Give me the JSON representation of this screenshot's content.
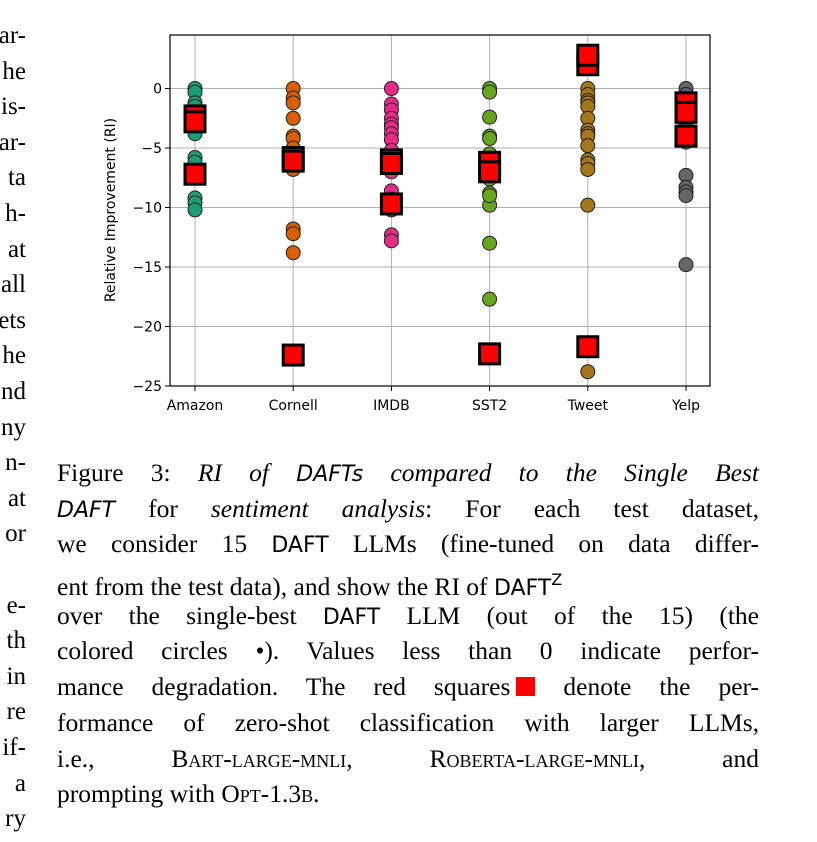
{
  "chart_data": {
    "type": "strip",
    "ylabel": "Relative Improvement (RI)",
    "categories": [
      "Amazon",
      "Cornell",
      "IMDB",
      "SST2",
      "Tweet",
      "Yelp"
    ],
    "circle_colors": [
      "#1b9e77",
      "#d95f02",
      "#e7298a",
      "#66a61e",
      "#a6761d",
      "#666666"
    ],
    "circles": [
      [
        0,
        -0.3,
        -1.2,
        -1.5,
        -2,
        -2.5,
        -3,
        -3.5,
        -3.8,
        -5.8,
        -6.2,
        -7,
        -9.2,
        -9.6,
        -10.2
      ],
      [
        0,
        -0.8,
        -1.2,
        -2.5,
        -4,
        -4.2,
        -5,
        -5.5,
        -6,
        -6.3,
        -6.5,
        -6.8,
        -11.8,
        -12.2,
        -13.8
      ],
      [
        0,
        -1.3,
        -1.8,
        -2.5,
        -3,
        -3.3,
        -3.8,
        -4.3,
        -5.2,
        -7,
        -8.6,
        -9.3,
        -10.2,
        -12.3,
        -12.8
      ],
      [
        0,
        -0.3,
        -2.4,
        -4,
        -4.2,
        -5.5,
        -6,
        -6.5,
        -7.2,
        -7.6,
        -8.8,
        -9.8,
        -13,
        -17.7,
        -9
      ],
      [
        0,
        -0.5,
        -1,
        -1.2,
        -1.5,
        -2.5,
        -3.5,
        -3.8,
        -4,
        -4.8,
        -6,
        -6.3,
        -6.8,
        -9.8,
        -23.8
      ],
      [
        0,
        -0.5,
        -1,
        -1.5,
        -1.8,
        -2,
        -3,
        -3.5,
        -4,
        -4.5,
        -7.3,
        -8.3,
        -8.7,
        -9,
        -14.8
      ]
    ],
    "square_color": "#ff0000",
    "squares": [
      [
        -2.3,
        -2.8,
        -7.2
      ],
      [
        -5.8,
        -6.1,
        -22.4
      ],
      [
        -6.0,
        -6.3,
        -9.7
      ],
      [
        -6.2,
        -7,
        -22.3
      ],
      [
        2,
        2.8,
        -21.7
      ],
      [
        -1.2,
        -2,
        -4
      ]
    ],
    "ylim": [
      -25,
      4.5
    ],
    "yticks": [
      {
        "value": -25,
        "label": "−25"
      },
      {
        "value": -20,
        "label": "−20"
      },
      {
        "value": -15,
        "label": "−15"
      },
      {
        "value": -10,
        "label": "−10"
      },
      {
        "value": -5,
        "label": "−5"
      },
      0
    ],
    "grid": true
  },
  "margin_text": [
    "ar-",
    "he",
    "is-",
    "ar-",
    "ta",
    "h-",
    "at",
    "all",
    "ets",
    "he",
    "nd",
    "ny",
    "n-",
    "at",
    "or",
    "e-",
    "th",
    "in",
    "re",
    "if-",
    "a",
    "ry"
  ],
  "caption": {
    "lines": [
      [
        "Figure 3: ",
        "RI of ",
        "DAFTs",
        " compared to the Single Best"
      ],
      [
        "DAFT",
        " for ",
        "sentiment analysis",
        ": For each test dataset,"
      ],
      [
        "we consider 15 ",
        "DAFT",
        " LLMs (fine-tuned on data differ-"
      ],
      [
        "ent from the test data), and show the RI of ",
        "DAFT",
        "Z"
      ],
      [
        "over the single-best ",
        "DAFT",
        " LLM (out of the 15) (the"
      ],
      [
        "colored circles •). Values less than 0 indicate perfor-"
      ],
      [
        "mance degradation. The red squares",
        " denote the per-"
      ],
      [
        "formance of zero-shot classification with larger LLMs,"
      ],
      [
        "i.e., ",
        "Bart-large-mnli",
        ", ",
        "Roberta-large-mnli",
        ", and"
      ],
      [
        "prompting with ",
        "Opt-1.3b",
        "."
      ]
    ]
  }
}
